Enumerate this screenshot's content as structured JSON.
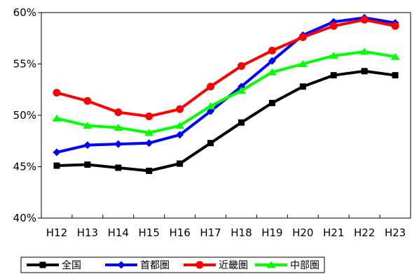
{
  "chart_data": {
    "type": "line",
    "title": "",
    "xlabel": "",
    "ylabel": "",
    "categories": [
      "H12",
      "H13",
      "H14",
      "H15",
      "H16",
      "H17",
      "H18",
      "H19",
      "H20",
      "H21",
      "H22",
      "H23"
    ],
    "ylim": [
      40,
      60
    ],
    "y_ticks": [
      40,
      45,
      50,
      55,
      60
    ],
    "y_tick_labels": [
      "40%",
      "45%",
      "50%",
      "55%",
      "60%"
    ],
    "grid": false,
    "legend_position": "bottom",
    "series": [
      {
        "name": "全国",
        "color": "#000000",
        "marker": "square",
        "values": [
          45.1,
          45.2,
          44.9,
          44.6,
          45.3,
          47.3,
          49.3,
          51.2,
          52.8,
          53.9,
          54.3,
          53.9
        ]
      },
      {
        "name": "首都圏",
        "color": "#0000ff",
        "marker": "diamond",
        "values": [
          46.4,
          47.1,
          47.2,
          47.3,
          48.1,
          50.4,
          52.8,
          55.3,
          57.8,
          59.1,
          59.5,
          59.0
        ]
      },
      {
        "name": "近畿圏",
        "color": "#ff0000",
        "marker": "circle",
        "values": [
          52.2,
          51.4,
          50.3,
          49.9,
          50.6,
          52.8,
          54.8,
          56.3,
          57.6,
          58.7,
          59.3,
          58.7
        ]
      },
      {
        "name": "中部圏",
        "color": "#00ff00",
        "marker": "triangle",
        "values": [
          49.7,
          49.0,
          48.8,
          48.3,
          49.0,
          50.9,
          52.4,
          54.2,
          55.0,
          55.8,
          56.2,
          55.7
        ]
      }
    ]
  }
}
